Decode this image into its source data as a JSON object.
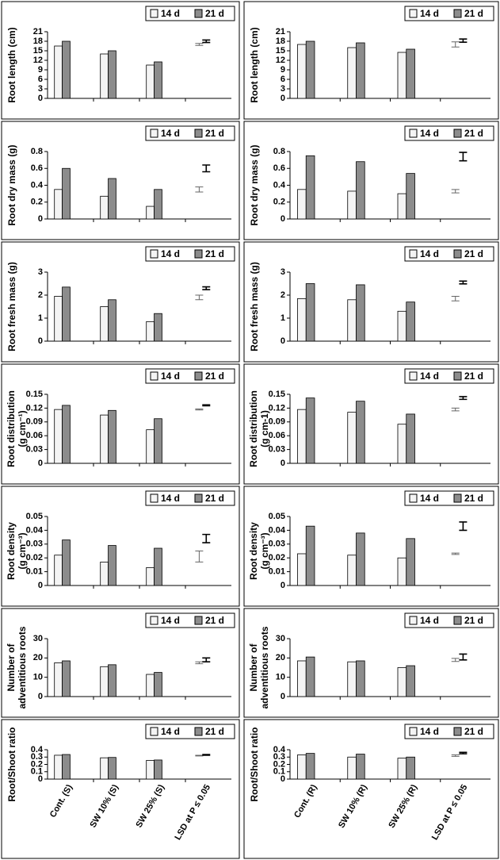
{
  "chart_data": [
    {
      "type": "bar",
      "ylabel": [
        "Root length (cm)"
      ],
      "categories": [
        null,
        null,
        null,
        null
      ],
      "ylim": [
        0,
        21
      ],
      "yticks": [
        0,
        3,
        6,
        9,
        12,
        15,
        18,
        21
      ],
      "series": [
        {
          "name": "14 d",
          "color": "#f4f4f4",
          "values": [
            16.5,
            14,
            10.5,
            null
          ],
          "lsd": {
            "value": 17,
            "error": 0.3
          }
        },
        {
          "name": "21 d",
          "color": "#8c8c8c",
          "values": [
            18,
            15,
            11.5,
            null
          ],
          "lsd": {
            "value": 18,
            "error": 0.4
          }
        }
      ]
    },
    {
      "type": "bar",
      "ylabel": [
        "Root length (cm)"
      ],
      "categories": [
        null,
        null,
        null,
        null
      ],
      "ylim": [
        0,
        21
      ],
      "yticks": [
        0,
        3,
        6,
        9,
        12,
        15,
        18,
        21
      ],
      "series": [
        {
          "name": "14 d",
          "color": "#f4f4f4",
          "values": [
            17,
            16,
            14.5,
            null
          ],
          "lsd": {
            "value": 17,
            "error": 0.8
          }
        },
        {
          "name": "21 d",
          "color": "#8c8c8c",
          "values": [
            18,
            17.5,
            15.5,
            null
          ],
          "lsd": {
            "value": 18.2,
            "error": 0.5
          }
        }
      ]
    },
    {
      "type": "bar",
      "ylabel": [
        "Root dry mass (g)"
      ],
      "categories": [
        null,
        null,
        null,
        null
      ],
      "ylim": [
        0,
        0.8
      ],
      "yticks": [
        0,
        0.2,
        0.4,
        0.6,
        0.8
      ],
      "series": [
        {
          "name": "14 d",
          "color": "#f4f4f4",
          "values": [
            0.35,
            0.27,
            0.15,
            null
          ],
          "lsd": {
            "value": 0.35,
            "error": 0.03
          }
        },
        {
          "name": "21 d",
          "color": "#8c8c8c",
          "values": [
            0.6,
            0.48,
            0.35,
            null
          ],
          "lsd": {
            "value": 0.6,
            "error": 0.04
          }
        }
      ]
    },
    {
      "type": "bar",
      "ylabel": [
        "Root dry mass (g)"
      ],
      "categories": [
        null,
        null,
        null,
        null
      ],
      "ylim": [
        0,
        0.8
      ],
      "yticks": [
        0,
        0.2,
        0.4,
        0.6,
        0.8
      ],
      "series": [
        {
          "name": "14 d",
          "color": "#f4f4f4",
          "values": [
            0.35,
            0.33,
            0.3,
            null
          ],
          "lsd": {
            "value": 0.33,
            "error": 0.02
          }
        },
        {
          "name": "21 d",
          "color": "#8c8c8c",
          "values": [
            0.75,
            0.68,
            0.54,
            null
          ],
          "lsd": {
            "value": 0.74,
            "error": 0.05
          }
        }
      ]
    },
    {
      "type": "bar",
      "ylabel": [
        "Root fresh mass (g)"
      ],
      "categories": [
        null,
        null,
        null,
        null
      ],
      "ylim": [
        0,
        3
      ],
      "yticks": [
        0,
        1,
        2,
        3
      ],
      "series": [
        {
          "name": "14 d",
          "color": "#f4f4f4",
          "values": [
            1.95,
            1.5,
            0.85,
            null
          ],
          "lsd": {
            "value": 1.9,
            "error": 0.1
          }
        },
        {
          "name": "21 d",
          "color": "#8c8c8c",
          "values": [
            2.35,
            1.8,
            1.2,
            null
          ],
          "lsd": {
            "value": 2.3,
            "error": 0.06
          }
        }
      ]
    },
    {
      "type": "bar",
      "ylabel": [
        "Root fresh mass (g)"
      ],
      "categories": [
        null,
        null,
        null,
        null
      ],
      "ylim": [
        0,
        3
      ],
      "yticks": [
        0,
        1,
        2,
        3
      ],
      "series": [
        {
          "name": "14 d",
          "color": "#f4f4f4",
          "values": [
            1.85,
            1.8,
            1.3,
            null
          ],
          "lsd": {
            "value": 1.85,
            "error": 0.1
          }
        },
        {
          "name": "21 d",
          "color": "#8c8c8c",
          "values": [
            2.5,
            2.45,
            1.7,
            null
          ],
          "lsd": {
            "value": 2.55,
            "error": 0.06
          }
        }
      ]
    },
    {
      "type": "bar",
      "ylabel": [
        "Root distribution",
        "(g cm⁻¹)"
      ],
      "categories": [
        null,
        null,
        null,
        null
      ],
      "ylim": [
        0,
        0.15
      ],
      "yticks": [
        0,
        0.03,
        0.06,
        0.09,
        0.12,
        0.15
      ],
      "series": [
        {
          "name": "14 d",
          "color": "#f4f4f4",
          "values": [
            0.117,
            0.105,
            0.073,
            null
          ],
          "lsd": {
            "value": 0.117,
            "error": 0.001
          }
        },
        {
          "name": "21 d",
          "color": "#8c8c8c",
          "values": [
            0.126,
            0.115,
            0.097,
            null
          ],
          "lsd": {
            "value": 0.126,
            "error": 0.001
          }
        }
      ]
    },
    {
      "type": "bar",
      "ylabel": [
        "Root distribution",
        "(g cm-1)"
      ],
      "categories": [
        null,
        null,
        null,
        null
      ],
      "ylim": [
        0,
        0.15
      ],
      "yticks": [
        0,
        0.03,
        0.06,
        0.09,
        0.12,
        0.15
      ],
      "series": [
        {
          "name": "14 d",
          "color": "#f4f4f4",
          "values": [
            0.117,
            0.111,
            0.085,
            null
          ],
          "lsd": {
            "value": 0.117,
            "error": 0.003
          }
        },
        {
          "name": "21 d",
          "color": "#8c8c8c",
          "values": [
            0.142,
            0.135,
            0.107,
            null
          ],
          "lsd": {
            "value": 0.142,
            "error": 0.003
          }
        }
      ]
    },
    {
      "type": "bar",
      "ylabel": [
        "Root density",
        "(g cm⁻³)"
      ],
      "categories": [
        null,
        null,
        null,
        null
      ],
      "ylim": [
        0,
        0.05
      ],
      "yticks": [
        0,
        0.01,
        0.02,
        0.03,
        0.04,
        0.05
      ],
      "series": [
        {
          "name": "14 d",
          "color": "#f4f4f4",
          "values": [
            0.022,
            0.017,
            0.013,
            null
          ],
          "lsd": {
            "value": 0.021,
            "error": 0.004
          }
        },
        {
          "name": "21 d",
          "color": "#8c8c8c",
          "values": [
            0.033,
            0.029,
            0.027,
            null
          ],
          "lsd": {
            "value": 0.034,
            "error": 0.003
          }
        }
      ]
    },
    {
      "type": "bar",
      "ylabel": [
        "Root density",
        "(g cm⁻³)"
      ],
      "categories": [
        null,
        null,
        null,
        null
      ],
      "ylim": [
        0,
        0.05
      ],
      "yticks": [
        0,
        0.01,
        0.02,
        0.03,
        0.04,
        0.05
      ],
      "series": [
        {
          "name": "14 d",
          "color": "#f4f4f4",
          "values": [
            0.023,
            0.022,
            0.02,
            null
          ],
          "lsd": {
            "value": 0.023,
            "error": 0.0005
          }
        },
        {
          "name": "21 d",
          "color": "#8c8c8c",
          "values": [
            0.043,
            0.038,
            0.034,
            null
          ],
          "lsd": {
            "value": 0.043,
            "error": 0.003
          }
        }
      ]
    },
    {
      "type": "bar",
      "ylabel": [
        "Number of",
        "adventitious roots"
      ],
      "categories": [
        null,
        null,
        null,
        null
      ],
      "ylim": [
        0,
        30
      ],
      "yticks": [
        0,
        10,
        20,
        30
      ],
      "series": [
        {
          "name": "14 d",
          "color": "#f4f4f4",
          "values": [
            17.5,
            15.5,
            11.5,
            null
          ],
          "lsd": {
            "value": 17.5,
            "error": 0.5
          }
        },
        {
          "name": "21 d",
          "color": "#8c8c8c",
          "values": [
            18.5,
            16.5,
            12.5,
            null
          ],
          "lsd": {
            "value": 19,
            "error": 1
          }
        }
      ]
    },
    {
      "type": "bar",
      "ylabel": [
        "Number of",
        "adventitious roots"
      ],
      "categories": [
        null,
        null,
        null,
        null
      ],
      "ylim": [
        0,
        30
      ],
      "yticks": [
        0,
        10,
        20,
        30
      ],
      "series": [
        {
          "name": "14 d",
          "color": "#f4f4f4",
          "values": [
            18.5,
            18,
            15,
            null
          ],
          "lsd": {
            "value": 19,
            "error": 0.8
          }
        },
        {
          "name": "21 d",
          "color": "#8c8c8c",
          "values": [
            20.5,
            18.5,
            16,
            null
          ],
          "lsd": {
            "value": 20.5,
            "error": 1.5
          }
        }
      ]
    },
    {
      "type": "bar",
      "ylabel": [
        "Root/Shoot ratio"
      ],
      "categories": [
        "Cont. (S)",
        "SW 10% (S)",
        "SW 25% (S)",
        "LSD at P ≤ 0.05"
      ],
      "ylim": [
        0,
        0.4
      ],
      "yticks": [
        0,
        0.1,
        0.2,
        0.3,
        0.4
      ],
      "series": [
        {
          "name": "14 d",
          "color": "#f4f4f4",
          "values": [
            0.325,
            0.29,
            0.255,
            null
          ],
          "lsd": {
            "value": 0.32,
            "error": 0.005
          }
        },
        {
          "name": "21 d",
          "color": "#8c8c8c",
          "values": [
            0.335,
            0.295,
            0.26,
            null
          ],
          "lsd": {
            "value": 0.33,
            "error": 0.005
          }
        }
      ]
    },
    {
      "type": "bar",
      "ylabel": [
        "Root/Shoot ratio"
      ],
      "categories": [
        "Cont. (R)",
        "SW 10% (R)",
        "SW 25% (R)",
        "LSD at P ≤ 0.05"
      ],
      "ylim": [
        0,
        0.4
      ],
      "yticks": [
        0,
        0.1,
        0.2,
        0.3,
        0.4
      ],
      "series": [
        {
          "name": "14 d",
          "color": "#f4f4f4",
          "values": [
            0.33,
            0.3,
            0.285,
            null
          ],
          "lsd": {
            "value": 0.32,
            "error": 0.01
          }
        },
        {
          "name": "21 d",
          "color": "#8c8c8c",
          "values": [
            0.35,
            0.34,
            0.3,
            null
          ],
          "lsd": {
            "value": 0.355,
            "error": 0.01
          }
        }
      ]
    }
  ]
}
